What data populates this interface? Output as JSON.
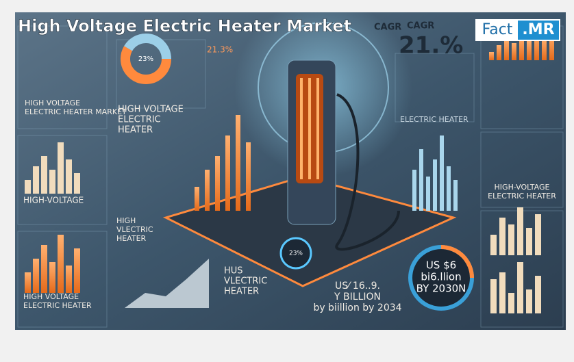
{
  "image": {
    "title": "High Voltage Electric Heater Market",
    "logo": {
      "left": "Fact",
      "right": ".MR"
    },
    "cagr": {
      "label_a": "CAGR",
      "label_b": "CAGR",
      "value": "21.%",
      "small": "21.3%"
    },
    "donut_label": "23%",
    "dial_label": "23%",
    "panels": {
      "top_left": [
        "HIGH VOLTAGE",
        "ELECTRIC HEATER MARKET"
      ],
      "center_left": [
        "HIGH VOLTAGE",
        "ELECTRIC",
        "HEATER"
      ],
      "center_right": "ELECTRIC HEATER",
      "mid_left": "HIGH-VOLTAGE",
      "right_mid": [
        "HIGH-VOLTAGE",
        "ELECTRIC HEATER"
      ],
      "left_lower": [
        "HIGH",
        "VLECTRIC",
        "HEATER"
      ],
      "bottom_left": [
        "HIGH VOLTAGE",
        "ELECTRIC HEATER"
      ],
      "bottom_center": [
        "HUS",
        "VLECTRIC",
        "HEATER"
      ],
      "bottom_value": [
        "US⁄ 16..9.",
        "Y BILLION",
        "by biillion by 2034"
      ],
      "badge": [
        "US $6",
        "bi6.llion",
        "BY 2030N"
      ]
    }
  }
}
